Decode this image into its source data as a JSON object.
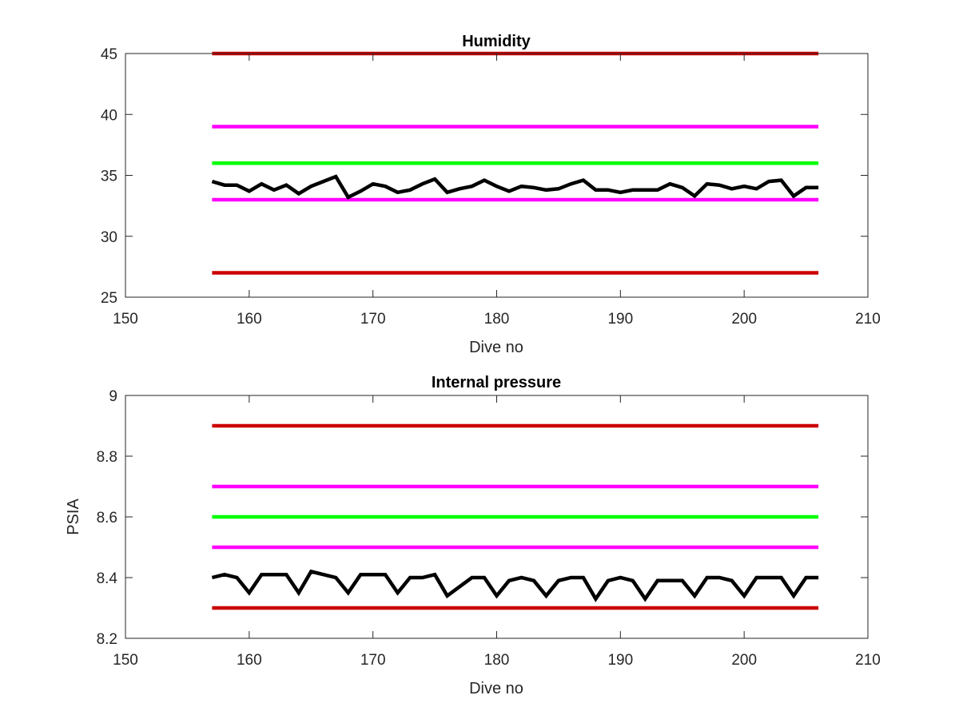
{
  "chart_data": [
    {
      "type": "line",
      "title": "Humidity",
      "xlabel": "Dive no",
      "ylabel": "",
      "xlim": [
        150,
        210
      ],
      "ylim": [
        25,
        45
      ],
      "xticks": [
        "150",
        "160",
        "170",
        "180",
        "190",
        "200",
        "210"
      ],
      "yticks": [
        "25",
        "30",
        "35",
        "40",
        "45"
      ],
      "xticks_values": [
        150,
        160,
        170,
        180,
        190,
        200,
        210
      ],
      "yticks_values": [
        25,
        30,
        35,
        40,
        45
      ],
      "grid": false,
      "series": [
        {
          "color": "#cc0000",
          "x": [
            157,
            206
          ],
          "values": [
            45,
            45
          ]
        },
        {
          "color": "#ff00ff",
          "x": [
            157,
            206
          ],
          "values": [
            39,
            39
          ]
        },
        {
          "color": "#00ff00",
          "x": [
            157,
            206
          ],
          "values": [
            36,
            36
          ]
        },
        {
          "color": "#ff00ff",
          "x": [
            157,
            206
          ],
          "values": [
            33,
            33
          ]
        },
        {
          "color": "#cc0000",
          "x": [
            157,
            206
          ],
          "values": [
            27,
            27
          ]
        },
        {
          "color": "#000000",
          "x": [
            157,
            158,
            159,
            160,
            161,
            162,
            163,
            164,
            165,
            166,
            167,
            168,
            169,
            170,
            171,
            172,
            173,
            174,
            175,
            176,
            177,
            178,
            179,
            180,
            181,
            182,
            183,
            184,
            185,
            186,
            187,
            188,
            189,
            190,
            191,
            192,
            193,
            194,
            195,
            196,
            197,
            198,
            199,
            200,
            201,
            202,
            203,
            204,
            205,
            206
          ],
          "values": [
            34.5,
            34.2,
            34.2,
            33.7,
            34.3,
            33.8,
            34.2,
            33.5,
            34.1,
            34.5,
            34.9,
            33.2,
            33.7,
            34.3,
            34.1,
            33.6,
            33.8,
            34.3,
            34.7,
            33.6,
            33.9,
            34.1,
            34.6,
            34.1,
            33.7,
            34.1,
            34.0,
            33.8,
            33.9,
            34.3,
            34.6,
            33.8,
            33.8,
            33.6,
            33.8,
            33.8,
            33.8,
            34.3,
            34.0,
            33.3,
            34.3,
            34.2,
            33.9,
            34.1,
            33.9,
            34.5,
            34.6,
            33.3,
            34.0,
            34.0
          ]
        }
      ]
    },
    {
      "type": "line",
      "title": "Internal pressure",
      "xlabel": "Dive no",
      "ylabel": "PSIA",
      "xlim": [
        150,
        210
      ],
      "ylim": [
        8.2,
        9
      ],
      "xticks": [
        "150",
        "160",
        "170",
        "180",
        "190",
        "200",
        "210"
      ],
      "yticks": [
        "8.2",
        "8.4",
        "8.6",
        "8.8",
        "9"
      ],
      "xticks_values": [
        150,
        160,
        170,
        180,
        190,
        200,
        210
      ],
      "yticks_values": [
        8.2,
        8.4,
        8.6,
        8.8,
        9
      ],
      "grid": false,
      "series": [
        {
          "color": "#cc0000",
          "x": [
            157,
            206
          ],
          "values": [
            8.9,
            8.9
          ]
        },
        {
          "color": "#ff00ff",
          "x": [
            157,
            206
          ],
          "values": [
            8.7,
            8.7
          ]
        },
        {
          "color": "#00ff00",
          "x": [
            157,
            206
          ],
          "values": [
            8.6,
            8.6
          ]
        },
        {
          "color": "#ff00ff",
          "x": [
            157,
            206
          ],
          "values": [
            8.5,
            8.5
          ]
        },
        {
          "color": "#cc0000",
          "x": [
            157,
            206
          ],
          "values": [
            8.3,
            8.3
          ]
        },
        {
          "color": "#000000",
          "x": [
            157,
            158,
            159,
            160,
            161,
            162,
            163,
            164,
            165,
            166,
            167,
            168,
            169,
            170,
            171,
            172,
            173,
            174,
            175,
            176,
            177,
            178,
            179,
            180,
            181,
            182,
            183,
            184,
            185,
            186,
            187,
            188,
            189,
            190,
            191,
            192,
            193,
            194,
            195,
            196,
            197,
            198,
            199,
            200,
            201,
            202,
            203,
            204,
            205,
            206
          ],
          "values": [
            8.4,
            8.41,
            8.4,
            8.35,
            8.41,
            8.41,
            8.41,
            8.35,
            8.42,
            8.41,
            8.4,
            8.35,
            8.41,
            8.41,
            8.41,
            8.35,
            8.4,
            8.4,
            8.41,
            8.34,
            8.37,
            8.4,
            8.4,
            8.34,
            8.39,
            8.4,
            8.39,
            8.34,
            8.39,
            8.4,
            8.4,
            8.33,
            8.39,
            8.4,
            8.39,
            8.33,
            8.39,
            8.39,
            8.39,
            8.34,
            8.4,
            8.4,
            8.39,
            8.34,
            8.4,
            8.4,
            8.4,
            8.34,
            8.4,
            8.4
          ]
        }
      ]
    }
  ]
}
